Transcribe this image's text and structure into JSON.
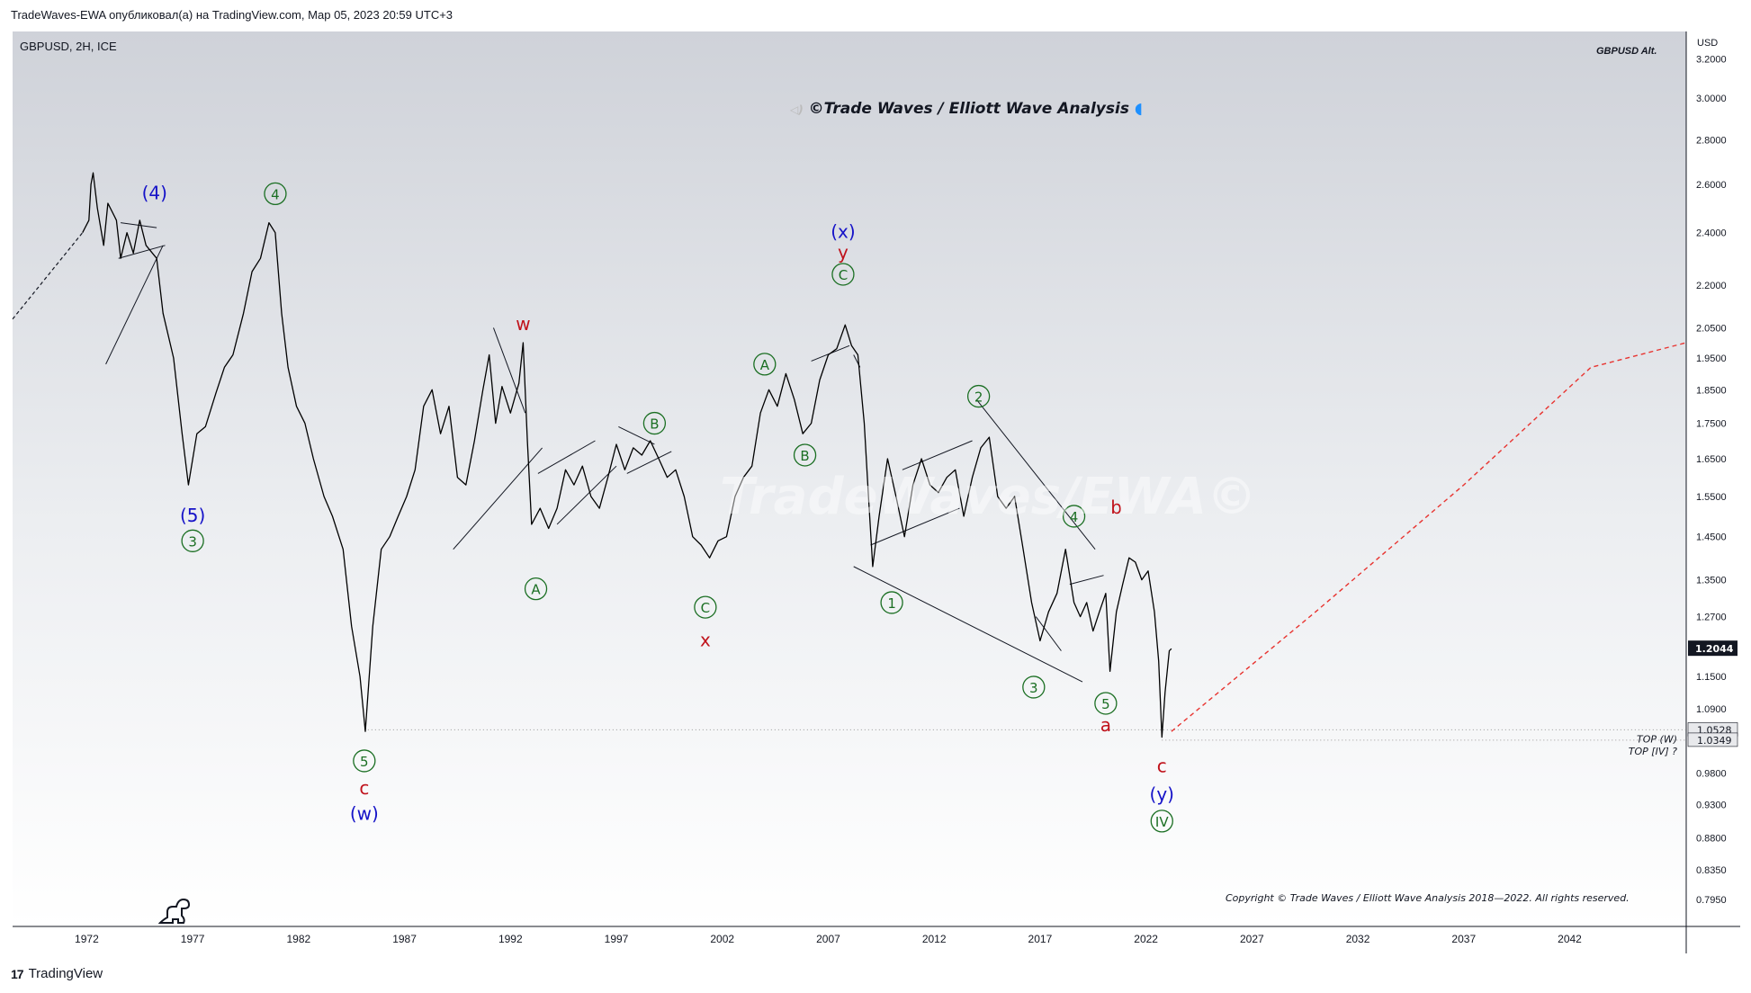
{
  "header": {
    "publish_line": "TradeWaves-EWA опубликовал(а) на TradingView.com, Мар 05, 2023 20:59 UTC+3",
    "symbol": "GBPUSD, 2H, ICE",
    "alt_label": "GBPUSD Alt.",
    "currency": "USD",
    "title_banner": "©Trade Waves / Elliott Wave Analysis",
    "copyright": "Copyright © Trade Waves / Elliott Wave Analysis 2018—2022. All rights reserved.",
    "watermark": "TradeWaves/EWA©",
    "brand": "TradingView"
  },
  "colors": {
    "blue_label": "#1512c8",
    "red_label": "#c0121b",
    "green_label": "#1b6f23",
    "price_line": "#000000",
    "projection": "#e8332f"
  },
  "chart_data": {
    "type": "line",
    "title": "GBPUSD, 2H, ICE",
    "y_scale": "log",
    "ylim": [
      0.76,
      3.35
    ],
    "xlim": [
      1968.5,
      2047.5
    ],
    "y_ticks": [
      "3.2000",
      "3.0000",
      "2.8000",
      "2.6000",
      "2.4000",
      "2.2000",
      "2.0500",
      "1.9500",
      "1.8500",
      "1.7500",
      "1.6500",
      "1.5500",
      "1.4500",
      "1.3500",
      "1.2700",
      "1.1500",
      "1.0900",
      "0.9800",
      "0.9300",
      "0.8800",
      "0.8350",
      "0.7950"
    ],
    "x_ticks": [
      "1972",
      "1977",
      "1982",
      "1987",
      "1992",
      "1997",
      "2002",
      "2007",
      "2012",
      "2017",
      "2022",
      "2027",
      "2032",
      "2037",
      "2042"
    ],
    "current_price": "1.2044",
    "price_markers": [
      {
        "label": "1.0528",
        "value": 1.0528
      },
      {
        "label": "1.0349",
        "value": 1.0349
      }
    ],
    "level_labels": [
      "TOP (W)",
      "TOP [IV] ?"
    ],
    "series": [
      {
        "points": [
          [
            1971.8,
            2.4
          ],
          [
            1972.1,
            2.45
          ],
          [
            1972.2,
            2.6
          ],
          [
            1972.3,
            2.65
          ],
          [
            1972.5,
            2.5
          ],
          [
            1972.8,
            2.35
          ],
          [
            1973.0,
            2.52
          ],
          [
            1973.4,
            2.45
          ],
          [
            1973.6,
            2.3
          ],
          [
            1973.9,
            2.4
          ],
          [
            1974.2,
            2.32
          ],
          [
            1974.5,
            2.45
          ],
          [
            1974.8,
            2.35
          ],
          [
            1975.3,
            2.3
          ],
          [
            1975.6,
            2.1
          ],
          [
            1976.1,
            1.95
          ],
          [
            1976.5,
            1.72
          ],
          [
            1976.8,
            1.58
          ],
          [
            1977.2,
            1.72
          ],
          [
            1977.6,
            1.74
          ],
          [
            1978.1,
            1.84
          ],
          [
            1978.5,
            1.92
          ],
          [
            1978.9,
            1.96
          ],
          [
            1979.4,
            2.1
          ],
          [
            1979.8,
            2.25
          ],
          [
            1980.2,
            2.3
          ],
          [
            1980.6,
            2.44
          ],
          [
            1980.9,
            2.4
          ],
          [
            1981.2,
            2.1
          ],
          [
            1981.5,
            1.92
          ],
          [
            1981.9,
            1.8
          ],
          [
            1982.3,
            1.75
          ],
          [
            1982.7,
            1.65
          ],
          [
            1983.2,
            1.55
          ],
          [
            1983.6,
            1.5
          ],
          [
            1984.1,
            1.42
          ],
          [
            1984.5,
            1.25
          ],
          [
            1984.9,
            1.15
          ],
          [
            1985.15,
            1.05
          ],
          [
            1985.5,
            1.25
          ],
          [
            1985.9,
            1.42
          ],
          [
            1986.3,
            1.45
          ],
          [
            1986.7,
            1.5
          ],
          [
            1987.1,
            1.55
          ],
          [
            1987.5,
            1.62
          ],
          [
            1987.9,
            1.8
          ],
          [
            1988.3,
            1.85
          ],
          [
            1988.7,
            1.72
          ],
          [
            1989.1,
            1.8
          ],
          [
            1989.5,
            1.6
          ],
          [
            1989.9,
            1.58
          ],
          [
            1990.3,
            1.7
          ],
          [
            1990.7,
            1.85
          ],
          [
            1991.0,
            1.96
          ],
          [
            1991.3,
            1.75
          ],
          [
            1991.6,
            1.86
          ],
          [
            1992.0,
            1.78
          ],
          [
            1992.4,
            1.87
          ],
          [
            1992.6,
            2.0
          ],
          [
            1992.8,
            1.7
          ],
          [
            1993.0,
            1.48
          ],
          [
            1993.4,
            1.52
          ],
          [
            1993.8,
            1.47
          ],
          [
            1994.2,
            1.52
          ],
          [
            1994.6,
            1.62
          ],
          [
            1995.0,
            1.58
          ],
          [
            1995.4,
            1.63
          ],
          [
            1995.8,
            1.55
          ],
          [
            1996.2,
            1.52
          ],
          [
            1996.6,
            1.6
          ],
          [
            1997.0,
            1.69
          ],
          [
            1997.4,
            1.62
          ],
          [
            1997.8,
            1.68
          ],
          [
            1998.2,
            1.66
          ],
          [
            1998.6,
            1.7
          ],
          [
            1999.0,
            1.65
          ],
          [
            1999.4,
            1.6
          ],
          [
            1999.8,
            1.62
          ],
          [
            2000.2,
            1.55
          ],
          [
            2000.6,
            1.45
          ],
          [
            2001.0,
            1.43
          ],
          [
            2001.4,
            1.4
          ],
          [
            2001.8,
            1.44
          ],
          [
            2002.2,
            1.45
          ],
          [
            2002.6,
            1.55
          ],
          [
            2003.0,
            1.6
          ],
          [
            2003.4,
            1.63
          ],
          [
            2003.8,
            1.78
          ],
          [
            2004.2,
            1.85
          ],
          [
            2004.6,
            1.8
          ],
          [
            2005.0,
            1.9
          ],
          [
            2005.4,
            1.82
          ],
          [
            2005.8,
            1.72
          ],
          [
            2006.2,
            1.75
          ],
          [
            2006.6,
            1.88
          ],
          [
            2007.0,
            1.96
          ],
          [
            2007.4,
            1.98
          ],
          [
            2007.8,
            2.06
          ],
          [
            2008.1,
            1.99
          ],
          [
            2008.4,
            1.96
          ],
          [
            2008.7,
            1.75
          ],
          [
            2008.9,
            1.55
          ],
          [
            2009.1,
            1.38
          ],
          [
            2009.4,
            1.5
          ],
          [
            2009.8,
            1.65
          ],
          [
            2010.2,
            1.55
          ],
          [
            2010.6,
            1.45
          ],
          [
            2011.0,
            1.58
          ],
          [
            2011.4,
            1.65
          ],
          [
            2011.8,
            1.58
          ],
          [
            2012.2,
            1.56
          ],
          [
            2012.6,
            1.6
          ],
          [
            2013.0,
            1.62
          ],
          [
            2013.4,
            1.5
          ],
          [
            2013.8,
            1.6
          ],
          [
            2014.2,
            1.68
          ],
          [
            2014.6,
            1.71
          ],
          [
            2015.0,
            1.55
          ],
          [
            2015.4,
            1.52
          ],
          [
            2015.8,
            1.55
          ],
          [
            2016.2,
            1.42
          ],
          [
            2016.6,
            1.3
          ],
          [
            2017.0,
            1.22
          ],
          [
            2017.4,
            1.28
          ],
          [
            2017.8,
            1.32
          ],
          [
            2018.2,
            1.42
          ],
          [
            2018.6,
            1.3
          ],
          [
            2018.9,
            1.27
          ],
          [
            2019.2,
            1.3
          ],
          [
            2019.5,
            1.24
          ],
          [
            2019.8,
            1.28
          ],
          [
            2020.1,
            1.32
          ],
          [
            2020.3,
            1.16
          ],
          [
            2020.6,
            1.28
          ],
          [
            2020.9,
            1.34
          ],
          [
            2021.2,
            1.4
          ],
          [
            2021.5,
            1.39
          ],
          [
            2021.8,
            1.35
          ],
          [
            2022.1,
            1.37
          ],
          [
            2022.4,
            1.28
          ],
          [
            2022.6,
            1.18
          ],
          [
            2022.75,
            1.04
          ],
          [
            2022.9,
            1.12
          ],
          [
            2023.1,
            1.2
          ],
          [
            2023.2,
            1.2044
          ]
        ]
      }
    ],
    "left_dashed_lead": [
      [
        1968.5,
        2.08
      ],
      [
        1971.8,
        2.4
      ]
    ],
    "projection": [
      [
        2023.2,
        1.05
      ],
      [
        2030,
        1.28
      ],
      [
        2037,
        1.58
      ],
      [
        2043,
        1.92
      ],
      [
        2047.5,
        2.0
      ]
    ]
  },
  "wave_labels": [
    {
      "text": "(4)",
      "color": "blue",
      "x": 1975.2,
      "y": 2.56
    },
    {
      "text": "(5)",
      "color": "blue",
      "x": 1977.0,
      "y": 1.5
    },
    {
      "text": "3",
      "color": "green",
      "circled": true,
      "x": 1977.0,
      "y": 1.44
    },
    {
      "text": "4",
      "color": "green",
      "circled": true,
      "x": 1980.9,
      "y": 2.56
    },
    {
      "text": "5",
      "color": "green",
      "circled": true,
      "x": 1985.1,
      "y": 1.0
    },
    {
      "text": "c",
      "color": "red",
      "x": 1985.1,
      "y": 0.955
    },
    {
      "text": "(w)",
      "color": "blue",
      "x": 1985.1,
      "y": 0.915
    },
    {
      "text": "w",
      "color": "red",
      "x": 1992.6,
      "y": 2.06
    },
    {
      "text": "A",
      "color": "green",
      "circled": true,
      "x": 1993.2,
      "y": 1.33
    },
    {
      "text": "B",
      "color": "green",
      "circled": true,
      "x": 1998.8,
      "y": 1.75
    },
    {
      "text": "C",
      "color": "green",
      "circled": true,
      "x": 2001.2,
      "y": 1.29
    },
    {
      "text": "x",
      "color": "red",
      "x": 2001.2,
      "y": 1.22
    },
    {
      "text": "A",
      "color": "green",
      "circled": true,
      "x": 2004.0,
      "y": 1.93
    },
    {
      "text": "B",
      "color": "green",
      "circled": true,
      "x": 2005.9,
      "y": 1.66
    },
    {
      "text": "C",
      "color": "green",
      "circled": true,
      "x": 2007.7,
      "y": 2.24
    },
    {
      "text": "(x)",
      "color": "blue",
      "x": 2007.7,
      "y": 2.4
    },
    {
      "text": "y",
      "color": "red",
      "x": 2007.7,
      "y": 2.32
    },
    {
      "text": "1",
      "color": "green",
      "circled": true,
      "x": 2010.0,
      "y": 1.3
    },
    {
      "text": "2",
      "color": "green",
      "circled": true,
      "x": 2014.1,
      "y": 1.83
    },
    {
      "text": "3",
      "color": "green",
      "circled": true,
      "x": 2016.7,
      "y": 1.13
    },
    {
      "text": "4",
      "color": "green",
      "circled": true,
      "x": 2018.6,
      "y": 1.5
    },
    {
      "text": "5",
      "color": "green",
      "circled": true,
      "x": 2020.1,
      "y": 1.1
    },
    {
      "text": "a",
      "color": "red",
      "x": 2020.1,
      "y": 1.06
    },
    {
      "text": "b",
      "color": "red",
      "x": 2020.6,
      "y": 1.52
    },
    {
      "text": "c",
      "color": "red",
      "x": 2022.75,
      "y": 0.99
    },
    {
      "text": "(y)",
      "color": "blue",
      "x": 2022.75,
      "y": 0.945
    },
    {
      "text": "IV",
      "color": "green",
      "circled": true,
      "x": 2022.75,
      "y": 0.905
    }
  ],
  "trend_lines": [
    [
      [
        1973.5,
        2.3
      ],
      [
        1975.7,
        2.35
      ]
    ],
    [
      [
        1973.6,
        2.44
      ],
      [
        1975.3,
        2.42
      ]
    ],
    [
      [
        1972.9,
        1.93
      ],
      [
        1975.6,
        2.35
      ]
    ],
    [
      [
        1989.3,
        1.42
      ],
      [
        1993.5,
        1.68
      ]
    ],
    [
      [
        1991.2,
        2.05
      ],
      [
        1992.7,
        1.78
      ]
    ],
    [
      [
        1993.3,
        1.61
      ],
      [
        1996.0,
        1.7
      ]
    ],
    [
      [
        1994.2,
        1.48
      ],
      [
        1997.0,
        1.63
      ]
    ],
    [
      [
        1997.1,
        1.74
      ],
      [
        1998.8,
        1.69
      ]
    ],
    [
      [
        1997.5,
        1.61
      ],
      [
        1999.6,
        1.67
      ]
    ],
    [
      [
        2006.2,
        1.94
      ],
      [
        2008.0,
        1.99
      ]
    ],
    [
      [
        2008.2,
        1.96
      ],
      [
        2008.5,
        1.92
      ]
    ],
    [
      [
        2009.0,
        1.43
      ],
      [
        2013.2,
        1.52
      ]
    ],
    [
      [
        2010.5,
        1.62
      ],
      [
        2013.8,
        1.7
      ]
    ],
    [
      [
        2008.2,
        1.38
      ],
      [
        2019.0,
        1.14
      ]
    ],
    [
      [
        2014.0,
        1.82
      ],
      [
        2019.6,
        1.42
      ]
    ],
    [
      [
        2016.8,
        1.27
      ],
      [
        2018.0,
        1.2
      ]
    ],
    [
      [
        2018.4,
        1.34
      ],
      [
        2020.0,
        1.36
      ]
    ]
  ]
}
